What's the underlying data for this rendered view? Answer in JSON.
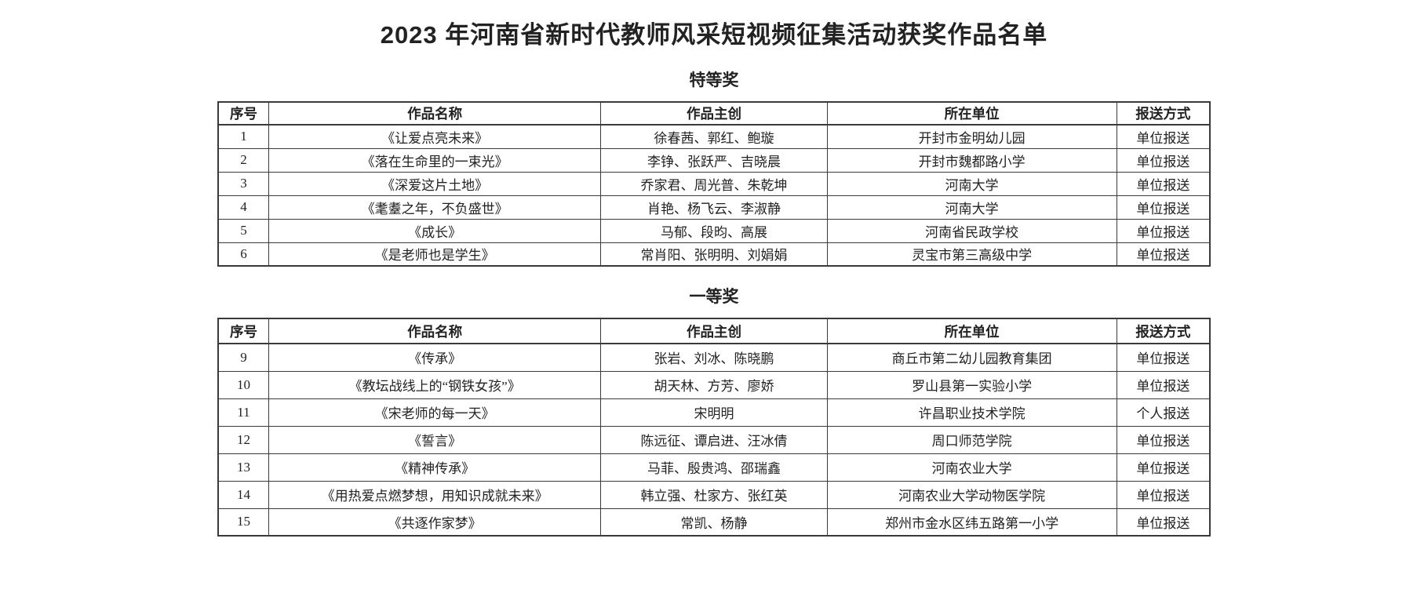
{
  "page": {
    "title": "2023 年河南省新时代教师风采短视频征集活动获奖作品名单"
  },
  "columns": [
    "序号",
    "作品名称",
    "作品主创",
    "所在单位",
    "报送方式"
  ],
  "sections": [
    {
      "heading": "特等奖",
      "rows": [
        [
          "1",
          "《让爱点亮未来》",
          "徐春茜、郭红、鲍璇",
          "开封市金明幼儿园",
          "单位报送"
        ],
        [
          "2",
          "《落在生命里的一束光》",
          "李铮、张跃严、吉晓晨",
          "开封市魏都路小学",
          "单位报送"
        ],
        [
          "3",
          "《深爱这片土地》",
          "乔家君、周光普、朱乾坤",
          "河南大学",
          "单位报送"
        ],
        [
          "4",
          "《耄耋之年，不负盛世》",
          "肖艳、杨飞云、李淑静",
          "河南大学",
          "单位报送"
        ],
        [
          "5",
          "《成长》",
          "马郁、段昀、高展",
          "河南省民政学校",
          "单位报送"
        ],
        [
          "6",
          "《是老师也是学生》",
          "常肖阳、张明明、刘娟娟",
          "灵宝市第三高级中学",
          "单位报送"
        ]
      ]
    },
    {
      "heading": "一等奖",
      "rows": [
        [
          "9",
          "《传承》",
          "张岩、刘冰、陈晓鹏",
          "商丘市第二幼儿园教育集团",
          "单位报送"
        ],
        [
          "10",
          "《教坛战线上的“钢铁女孩”》",
          "胡天林、方芳、廖娇",
          "罗山县第一实验小学",
          "单位报送"
        ],
        [
          "11",
          "《宋老师的每一天》",
          "宋明明",
          "许昌职业技术学院",
          "个人报送"
        ],
        [
          "12",
          "《誓言》",
          "陈远征、谭启进、汪冰倩",
          "周口师范学院",
          "单位报送"
        ],
        [
          "13",
          "《精神传承》",
          "马菲、殷贵鸿、邵瑞鑫",
          "河南农业大学",
          "单位报送"
        ],
        [
          "14",
          "《用热爱点燃梦想，用知识成就未来》",
          "韩立强、杜家方、张红英",
          "河南农业大学动物医学院",
          "单位报送"
        ],
        [
          "15",
          "《共逐作家梦》",
          "常凯、杨静",
          "郑州市金水区纬五路第一小学",
          "单位报送"
        ]
      ]
    }
  ],
  "colors": {
    "text": "#222222",
    "border": "#3a3a3a",
    "background": "#ffffff"
  }
}
